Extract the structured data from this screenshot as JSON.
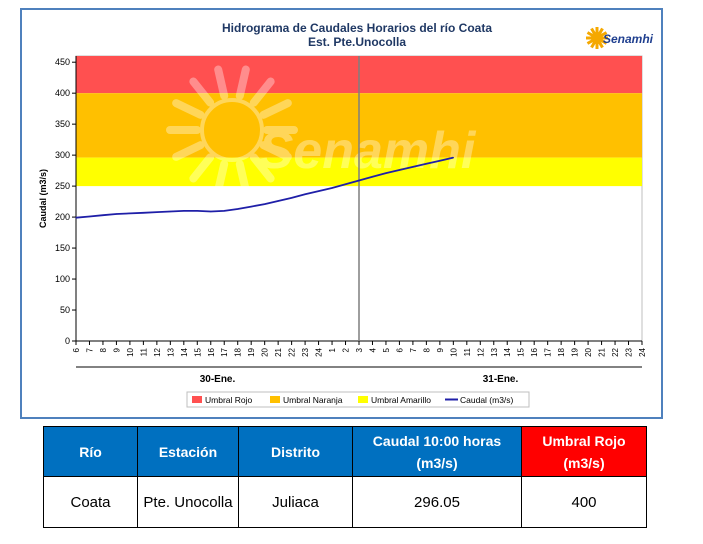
{
  "chart_data": {
    "type": "line",
    "title": "Hidrograma de Caudales Horarios del río Coata",
    "subtitle": "Est. Pte.Unocolla",
    "ylabel": "Caudal  (m3/s)",
    "ylim": [
      0,
      460
    ],
    "yticks": [
      0,
      50,
      100,
      150,
      200,
      250,
      300,
      350,
      400,
      450
    ],
    "xtick_labels": [
      "6",
      "7",
      "8",
      "9",
      "10",
      "11",
      "12",
      "13",
      "14",
      "15",
      "16",
      "17",
      "18",
      "19",
      "20",
      "21",
      "22",
      "23",
      "24",
      "1",
      "2",
      "3",
      "4",
      "5",
      "6",
      "7",
      "8",
      "9",
      "10",
      "11",
      "12",
      "13",
      "14",
      "15",
      "16",
      "17",
      "18",
      "19",
      "20",
      "21",
      "22",
      "23",
      "24"
    ],
    "day_groups": [
      {
        "label": "30-Ene.",
        "start_index": 0,
        "end_index": 21
      },
      {
        "label": "31-Ene.",
        "start_index": 21,
        "end_index": 42
      }
    ],
    "divider_index": 21,
    "bands": [
      {
        "name": "Umbral Rojo",
        "from": 400,
        "to": 460,
        "color": "#ff5050"
      },
      {
        "name": "Umbral Naranja",
        "from": 296,
        "to": 400,
        "color": "#ffc000"
      },
      {
        "name": "Umbral Amarillo",
        "from": 250,
        "to": 296,
        "color": "#ffff00"
      }
    ],
    "series": [
      {
        "name": "Caudal (m3/s)",
        "color": "#1f1fa8",
        "x_index": [
          0,
          1,
          2,
          3,
          4,
          5,
          6,
          7,
          8,
          9,
          10,
          11,
          12,
          13,
          14,
          15,
          16,
          17,
          18,
          19,
          20,
          21,
          22,
          23,
          24,
          25,
          26,
          27,
          28
        ],
        "values": [
          199,
          201,
          203,
          205,
          206,
          207,
          208,
          209,
          210,
          210,
          209,
          210,
          213,
          217,
          221,
          226,
          231,
          237,
          242,
          247,
          253,
          259,
          265,
          271,
          276,
          281,
          286,
          291,
          296
        ]
      }
    ],
    "legend_position": "bottom",
    "watermark": "Senamhi",
    "logo_text": "Senamhi"
  },
  "table": {
    "headers": [
      {
        "label": "Río",
        "color": "#0070c0"
      },
      {
        "label": "Estación",
        "color": "#0070c0"
      },
      {
        "label": "Distrito",
        "color": "#0070c0"
      },
      {
        "label": "Caudal 10:00 horas (m3/s)",
        "color": "#0070c0"
      },
      {
        "label": "Umbral Rojo (m3/s)",
        "color": "#ff0000"
      }
    ],
    "row": [
      "Coata",
      "Pte. Unocolla",
      "Juliaca",
      "296.05",
      "400"
    ]
  }
}
